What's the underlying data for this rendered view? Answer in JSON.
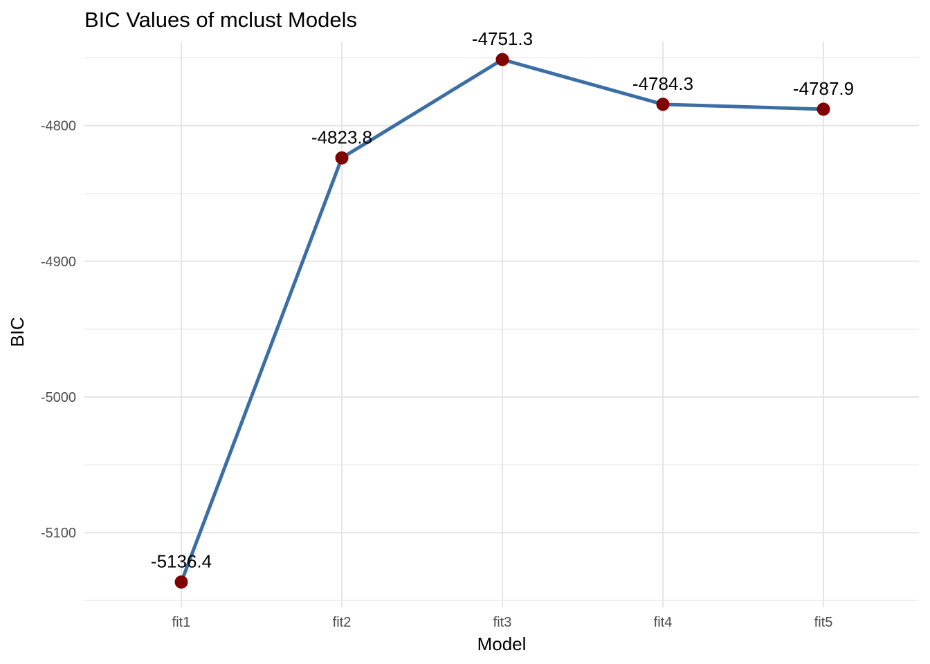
{
  "chart_data": {
    "type": "line",
    "title": "BIC Values of mclust Models",
    "xlabel": "Model",
    "ylabel": "BIC",
    "categories": [
      "fit1",
      "fit2",
      "fit3",
      "fit4",
      "fit5"
    ],
    "values": [
      -5136.4,
      -4823.8,
      -4751.3,
      -4784.3,
      -4787.9
    ],
    "data_labels": [
      "-5136.4",
      "-4823.8",
      "-4751.3",
      "-4784.3",
      "-4787.9"
    ],
    "ylim": [
      -5155,
      -4738
    ],
    "y_ticks": [
      -5100,
      -5000,
      -4900,
      -4800
    ],
    "y_tick_labels": [
      "-5100",
      "-5000",
      "-4900",
      "-4800"
    ],
    "y_minor_ticks": [
      -5150,
      -5050,
      -4950,
      -4850,
      -4750
    ],
    "grid": true,
    "legend": "none",
    "line_color": "#3a6ea5",
    "point_color": "#800000"
  }
}
